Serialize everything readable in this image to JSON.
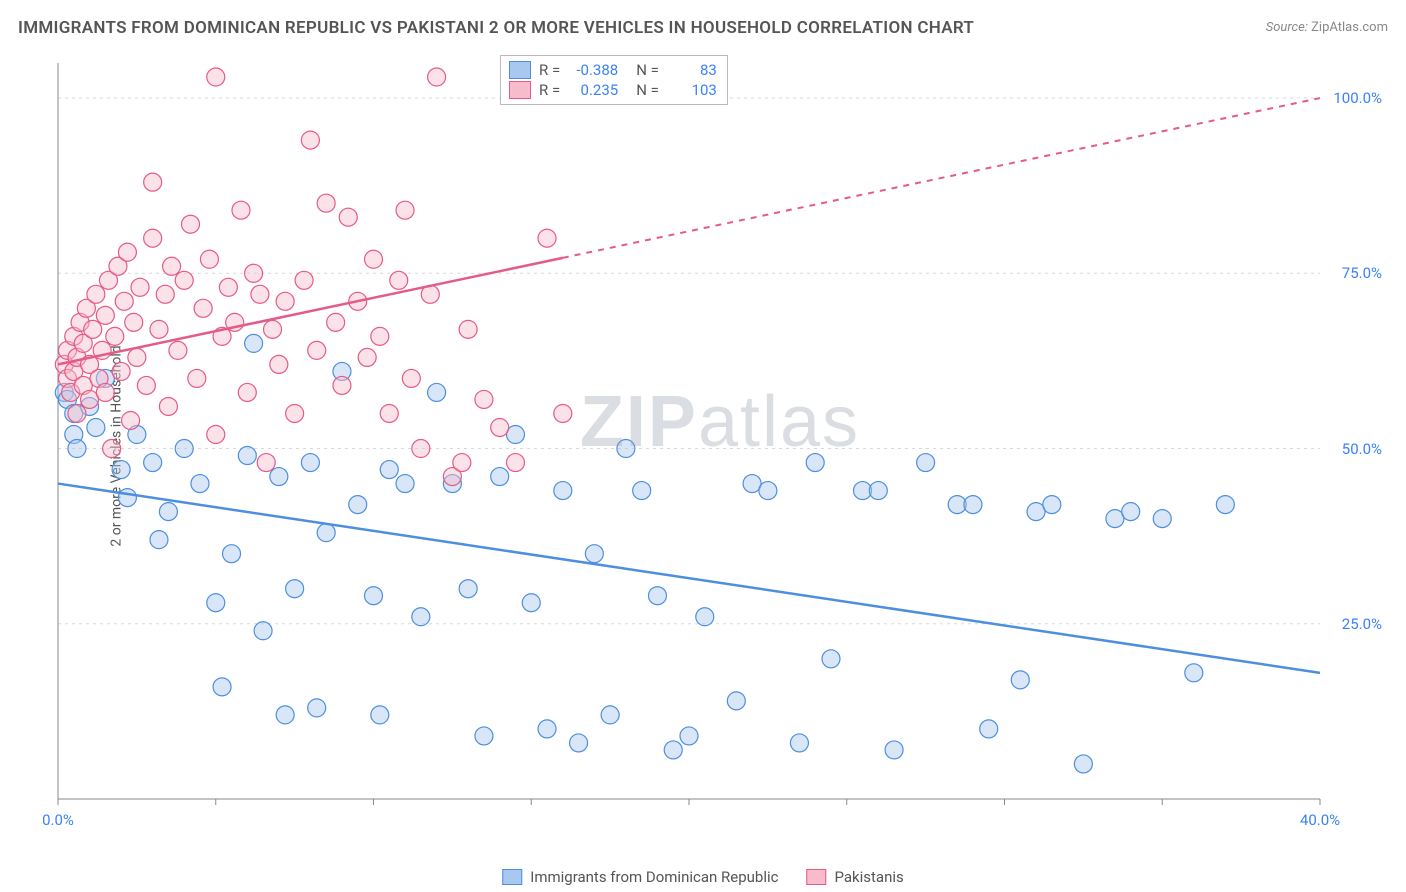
{
  "title": "IMMIGRANTS FROM DOMINICAN REPUBLIC VS PAKISTANI 2 OR MORE VEHICLES IN HOUSEHOLD CORRELATION CHART",
  "source_label": "Source:",
  "source_value": "ZipAtlas.com",
  "y_axis_label": "2 or more Vehicles in Household",
  "watermark_a": "ZIP",
  "watermark_b": "atlas",
  "chart": {
    "type": "scatter",
    "xlim": [
      0,
      40
    ],
    "ylim": [
      0,
      105
    ],
    "x_ticks": [
      0,
      40
    ],
    "x_tick_labels": [
      "0.0%",
      "40.0%"
    ],
    "y_ticks": [
      25,
      50,
      75,
      100
    ],
    "y_tick_labels": [
      "25.0%",
      "50.0%",
      "75.0%",
      "100.0%"
    ],
    "grid_color": "#d8d8d8",
    "axis_color": "#888888",
    "background_color": "#ffffff",
    "marker_radius": 9,
    "marker_opacity": 0.45,
    "series": [
      {
        "name": "Immigrants from Dominican Republic",
        "fill_color": "#a9c8ef",
        "stroke_color": "#4d8fde",
        "r_value": "-0.388",
        "n_value": "83",
        "trend": {
          "x1": 0,
          "y1": 45,
          "x2": 40,
          "y2": 18,
          "solid_until_x": 40
        },
        "points": [
          [
            0.2,
            58
          ],
          [
            0.3,
            57
          ],
          [
            0.5,
            55
          ],
          [
            0.5,
            52
          ],
          [
            0.6,
            50
          ],
          [
            1.0,
            56
          ],
          [
            1.2,
            53
          ],
          [
            1.5,
            60
          ],
          [
            2.0,
            47
          ],
          [
            2.2,
            43
          ],
          [
            2.5,
            52
          ],
          [
            3.0,
            48
          ],
          [
            3.2,
            37
          ],
          [
            3.5,
            41
          ],
          [
            4.0,
            50
          ],
          [
            4.5,
            45
          ],
          [
            5.0,
            28
          ],
          [
            5.2,
            16
          ],
          [
            5.5,
            35
          ],
          [
            6.0,
            49
          ],
          [
            6.2,
            65
          ],
          [
            6.5,
            24
          ],
          [
            7.0,
            46
          ],
          [
            7.2,
            12
          ],
          [
            7.5,
            30
          ],
          [
            8.0,
            48
          ],
          [
            8.2,
            13
          ],
          [
            8.5,
            38
          ],
          [
            9.0,
            61
          ],
          [
            9.5,
            42
          ],
          [
            10.0,
            29
          ],
          [
            10.2,
            12
          ],
          [
            10.5,
            47
          ],
          [
            11.0,
            45
          ],
          [
            11.5,
            26
          ],
          [
            12.0,
            58
          ],
          [
            12.5,
            45
          ],
          [
            13.0,
            30
          ],
          [
            13.5,
            9
          ],
          [
            14.0,
            46
          ],
          [
            14.5,
            52
          ],
          [
            15.0,
            28
          ],
          [
            15.5,
            10
          ],
          [
            16.0,
            44
          ],
          [
            16.5,
            8
          ],
          [
            17.0,
            35
          ],
          [
            17.5,
            12
          ],
          [
            18.0,
            50
          ],
          [
            18.5,
            44
          ],
          [
            19.0,
            29
          ],
          [
            19.5,
            7
          ],
          [
            20.0,
            9
          ],
          [
            20.5,
            26
          ],
          [
            21.5,
            14
          ],
          [
            22.0,
            45
          ],
          [
            22.5,
            44
          ],
          [
            23.5,
            8
          ],
          [
            24.0,
            48
          ],
          [
            24.5,
            20
          ],
          [
            25.5,
            44
          ],
          [
            26.0,
            44
          ],
          [
            26.5,
            7
          ],
          [
            27.5,
            48
          ],
          [
            28.5,
            42
          ],
          [
            29.0,
            42
          ],
          [
            29.5,
            10
          ],
          [
            30.5,
            17
          ],
          [
            31.0,
            41
          ],
          [
            31.5,
            42
          ],
          [
            32.5,
            5
          ],
          [
            33.5,
            40
          ],
          [
            34.0,
            41
          ],
          [
            35.0,
            40
          ],
          [
            36.0,
            18
          ],
          [
            37.0,
            42
          ]
        ]
      },
      {
        "name": "Pakistanis",
        "fill_color": "#f6bccc",
        "stroke_color": "#e65a88",
        "r_value": "0.235",
        "n_value": "103",
        "trend": {
          "x1": 0,
          "y1": 62,
          "x2": 40,
          "y2": 100,
          "solid_until_x": 16
        },
        "points": [
          [
            0.2,
            62
          ],
          [
            0.3,
            60
          ],
          [
            0.3,
            64
          ],
          [
            0.4,
            58
          ],
          [
            0.5,
            61
          ],
          [
            0.5,
            66
          ],
          [
            0.6,
            55
          ],
          [
            0.6,
            63
          ],
          [
            0.7,
            68
          ],
          [
            0.8,
            59
          ],
          [
            0.8,
            65
          ],
          [
            0.9,
            70
          ],
          [
            1.0,
            57
          ],
          [
            1.0,
            62
          ],
          [
            1.1,
            67
          ],
          [
            1.2,
            72
          ],
          [
            1.3,
            60
          ],
          [
            1.4,
            64
          ],
          [
            1.5,
            58
          ],
          [
            1.5,
            69
          ],
          [
            1.6,
            74
          ],
          [
            1.7,
            50
          ],
          [
            1.8,
            66
          ],
          [
            1.9,
            76
          ],
          [
            2.0,
            61
          ],
          [
            2.1,
            71
          ],
          [
            2.2,
            78
          ],
          [
            2.3,
            54
          ],
          [
            2.4,
            68
          ],
          [
            2.5,
            63
          ],
          [
            2.6,
            73
          ],
          [
            2.8,
            59
          ],
          [
            3.0,
            80
          ],
          [
            3.0,
            88
          ],
          [
            3.2,
            67
          ],
          [
            3.4,
            72
          ],
          [
            3.5,
            56
          ],
          [
            3.6,
            76
          ],
          [
            3.8,
            64
          ],
          [
            4.0,
            74
          ],
          [
            4.2,
            82
          ],
          [
            4.4,
            60
          ],
          [
            4.6,
            70
          ],
          [
            4.8,
            77
          ],
          [
            5.0,
            52
          ],
          [
            5.0,
            103
          ],
          [
            5.2,
            66
          ],
          [
            5.4,
            73
          ],
          [
            5.6,
            68
          ],
          [
            5.8,
            84
          ],
          [
            6.0,
            58
          ],
          [
            6.2,
            75
          ],
          [
            6.4,
            72
          ],
          [
            6.6,
            48
          ],
          [
            6.8,
            67
          ],
          [
            7.0,
            62
          ],
          [
            7.2,
            71
          ],
          [
            7.5,
            55
          ],
          [
            7.8,
            74
          ],
          [
            8.0,
            94
          ],
          [
            8.2,
            64
          ],
          [
            8.5,
            85
          ],
          [
            8.8,
            68
          ],
          [
            9.0,
            59
          ],
          [
            9.2,
            83
          ],
          [
            9.5,
            71
          ],
          [
            9.8,
            63
          ],
          [
            10.0,
            77
          ],
          [
            10.2,
            66
          ],
          [
            10.5,
            55
          ],
          [
            10.8,
            74
          ],
          [
            11.0,
            84
          ],
          [
            11.2,
            60
          ],
          [
            11.5,
            50
          ],
          [
            11.8,
            72
          ],
          [
            12.0,
            103
          ],
          [
            12.5,
            46
          ],
          [
            12.8,
            48
          ],
          [
            13.0,
            67
          ],
          [
            13.5,
            57
          ],
          [
            14.0,
            53
          ],
          [
            14.5,
            48
          ],
          [
            15.5,
            80
          ],
          [
            16.0,
            55
          ]
        ]
      }
    ]
  },
  "legend_r_label": "R =",
  "legend_n_label": "N ="
}
